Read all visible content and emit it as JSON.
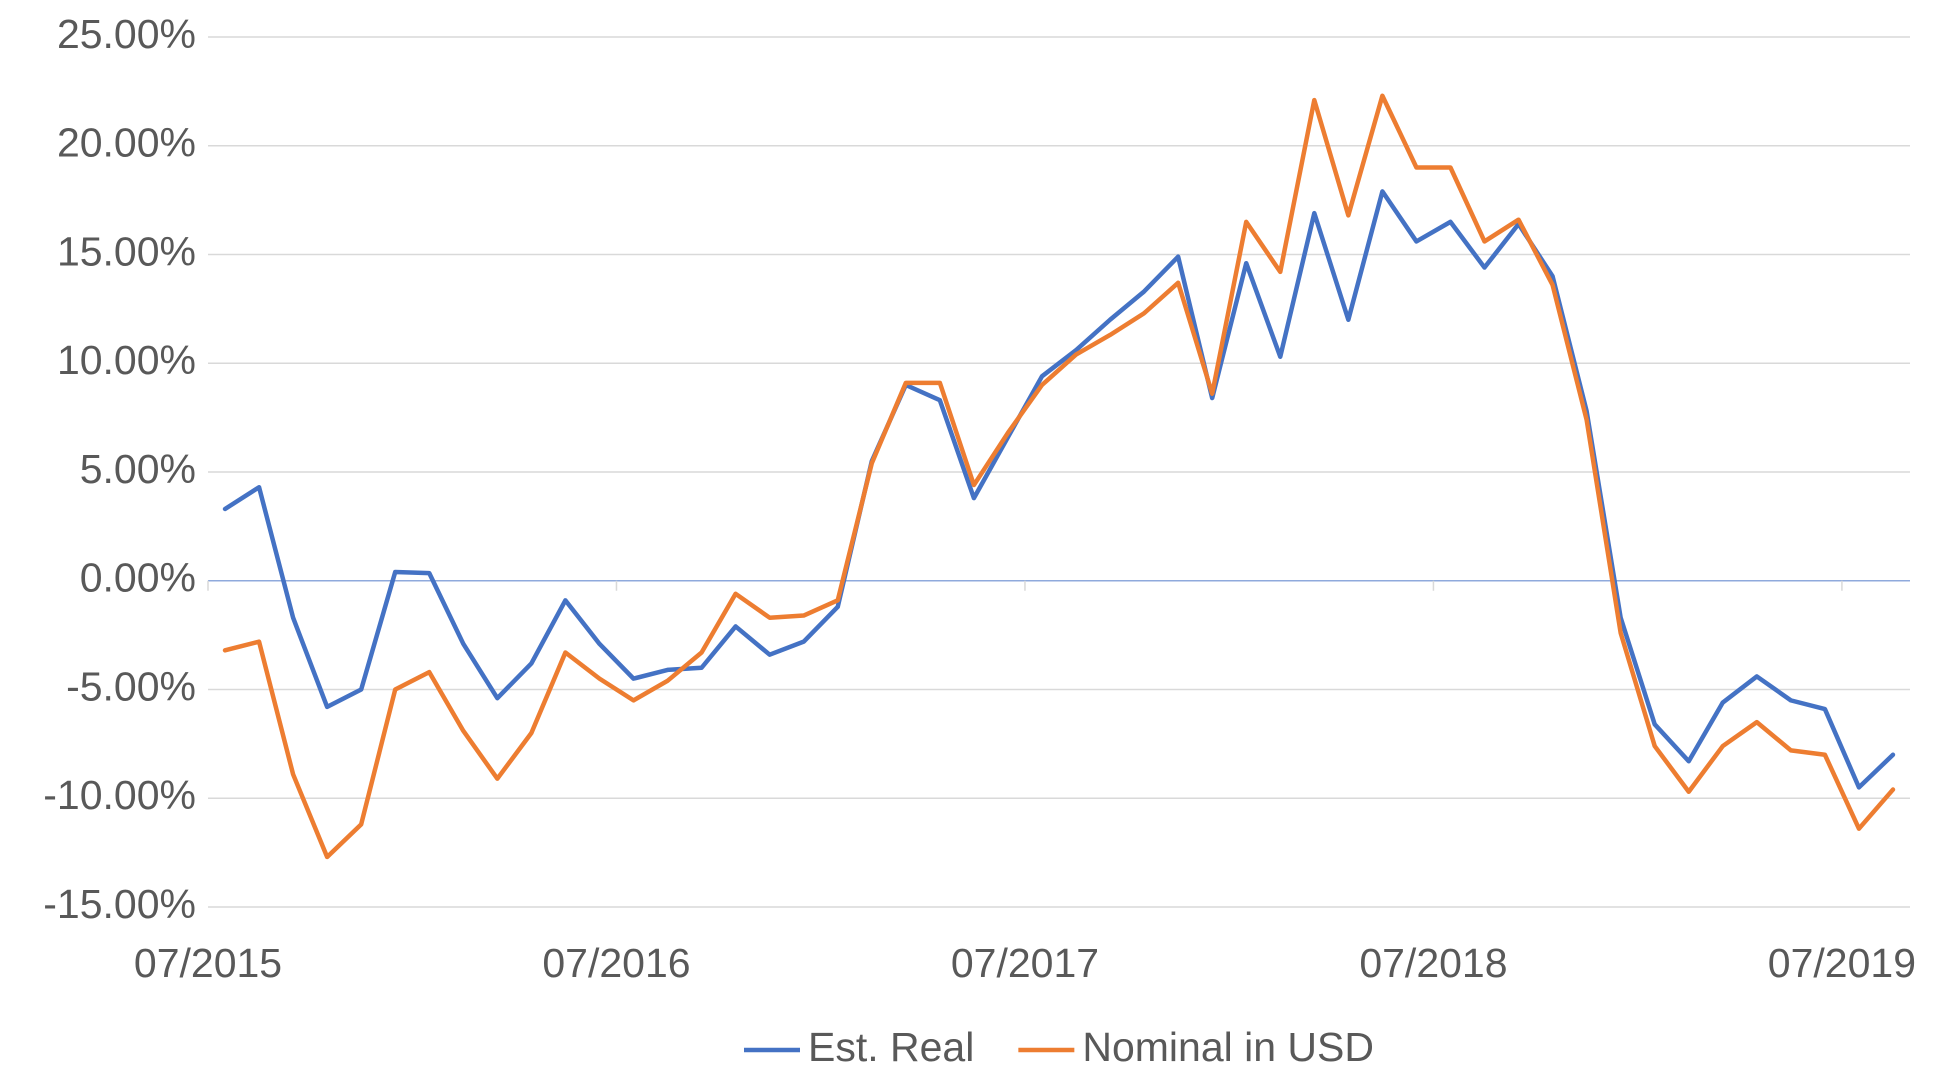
{
  "chart_data": {
    "type": "line",
    "categories": [
      "07/2015",
      null,
      null,
      null,
      null,
      null,
      null,
      null,
      null,
      null,
      null,
      null,
      "07/2016",
      null,
      null,
      null,
      null,
      null,
      null,
      null,
      null,
      null,
      null,
      null,
      "07/2017",
      null,
      null,
      null,
      null,
      null,
      null,
      null,
      null,
      null,
      null,
      null,
      "07/2018",
      null,
      null,
      null,
      null,
      null,
      null,
      null,
      null,
      null,
      null,
      null,
      "07/2019",
      null
    ],
    "series": [
      {
        "name": "Est. Real",
        "color": "#4472c4",
        "values": [
          3.3,
          4.3,
          -1.7,
          -5.8,
          -5.0,
          0.4,
          0.35,
          -2.9,
          -5.4,
          -3.8,
          -0.9,
          -2.9,
          -4.5,
          -4.1,
          -4.0,
          -2.1,
          -3.4,
          -2.8,
          -1.2,
          5.5,
          9.0,
          8.3,
          3.8,
          6.6,
          9.4,
          10.6,
          12.0,
          13.3,
          14.9,
          8.4,
          14.6,
          10.3,
          16.9,
          12.0,
          17.9,
          15.6,
          16.5,
          14.4,
          16.4,
          14.0,
          7.8,
          -1.7,
          -6.6,
          -8.3,
          -5.6,
          -4.4,
          -5.5,
          -5.9,
          -9.5,
          -8.0
        ]
      },
      {
        "name": "Nominal in USD",
        "color": "#ed7d31",
        "values": [
          -3.2,
          -2.8,
          -8.9,
          -12.7,
          -11.2,
          -5.0,
          -4.2,
          -6.9,
          -9.1,
          -7.0,
          -3.3,
          -4.5,
          -5.5,
          -4.6,
          -3.3,
          -0.6,
          -1.7,
          -1.6,
          -0.9,
          5.4,
          9.1,
          9.1,
          4.4,
          6.8,
          9.0,
          10.4,
          11.3,
          12.3,
          13.7,
          8.6,
          16.5,
          14.2,
          22.1,
          16.8,
          22.3,
          19.0,
          19.0,
          15.6,
          16.6,
          13.6,
          7.4,
          -2.4,
          -7.6,
          -9.7,
          -7.6,
          -6.5,
          -7.8,
          -8.0,
          -11.4,
          -9.6
        ]
      }
    ],
    "ylim": [
      -15,
      25
    ],
    "yticks": [
      {
        "value": -15,
        "label": "-15.00%"
      },
      {
        "value": -10,
        "label": "-10.00%"
      },
      {
        "value": -5,
        "label": "-5.00%"
      },
      {
        "value": 0,
        "label": "0.00%"
      },
      {
        "value": 5,
        "label": "5.00%"
      },
      {
        "value": 10,
        "label": "10.00%"
      },
      {
        "value": 15,
        "label": "15.00%"
      },
      {
        "value": 20,
        "label": "20.00%"
      },
      {
        "value": 25,
        "label": "25.00%"
      }
    ],
    "grid": true,
    "legend": "bottom"
  }
}
